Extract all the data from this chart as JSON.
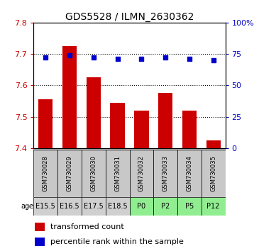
{
  "title": "GDS5528 / ILMN_2630362",
  "samples": [
    "GSM730028",
    "GSM730029",
    "GSM730030",
    "GSM730031",
    "GSM730032",
    "GSM730033",
    "GSM730034",
    "GSM730035"
  ],
  "ages": [
    "E15.5",
    "E16.5",
    "E17.5",
    "E18.5",
    "P0",
    "P2",
    "P5",
    "P12"
  ],
  "age_colors": [
    "#d0d0d0",
    "#d0d0d0",
    "#d0d0d0",
    "#d0d0d0",
    "#90ee90",
    "#90ee90",
    "#90ee90",
    "#90ee90"
  ],
  "sample_bg_color": "#c8c8c8",
  "bar_values": [
    7.555,
    7.725,
    7.625,
    7.545,
    7.52,
    7.575,
    7.52,
    7.425
  ],
  "percentile_values": [
    72,
    74,
    72,
    71,
    71,
    72,
    71,
    70
  ],
  "ylim_left": [
    7.4,
    7.8
  ],
  "ylim_right": [
    0,
    100
  ],
  "yticks_left": [
    7.4,
    7.5,
    7.6,
    7.7,
    7.8
  ],
  "yticks_right": [
    0,
    25,
    50,
    75,
    100
  ],
  "bar_color": "#cc0000",
  "dot_color": "#0000cc",
  "bar_bottom": 7.4,
  "title_fontsize": 10,
  "tick_fontsize": 8,
  "legend_fontsize": 8,
  "sample_fontsize": 6,
  "age_fontsize": 7
}
